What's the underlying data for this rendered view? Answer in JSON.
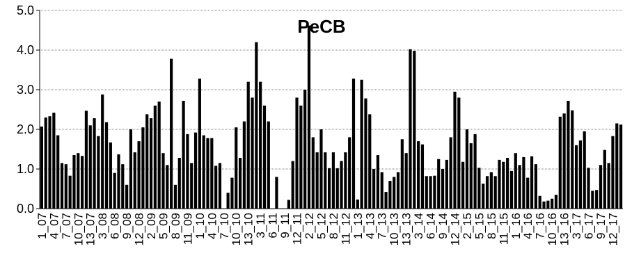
{
  "chart_data": {
    "type": "bar",
    "title": "PeCB",
    "xlabel": "",
    "ylabel": "",
    "ylim": [
      0,
      5
    ],
    "yticks": [
      "0.0",
      "1.0",
      "2.0",
      "3.0",
      "4.0",
      "5.0"
    ],
    "grid": true,
    "bar_color": "#000000",
    "x_tick_labels": [
      "1_07",
      "4_07",
      "7_07",
      "10_07",
      "13_07",
      "3_08",
      "6_08",
      "9_08",
      "12_08",
      "2_09",
      "5_09",
      "8_09",
      "11_09",
      "1_10",
      "4_10",
      "7_10",
      "10_10",
      "13_10",
      "3_11",
      "6_11",
      "9_11",
      "12_11",
      "2_12",
      "5_12",
      "8_12",
      "11_12",
      "1_13",
      "4_13",
      "7_13",
      "10_13",
      "13_13",
      "3_14",
      "6_14",
      "9_14",
      "12_14",
      "2_15",
      "5_15",
      "8_15",
      "11_15",
      "1_16",
      "4_16",
      "7_16",
      "10_16",
      "13_16",
      "3_17",
      "6_17",
      "9_17",
      "12_17"
    ],
    "values": [
      2.07,
      2.3,
      2.33,
      2.42,
      1.85,
      1.15,
      1.12,
      0.83,
      1.35,
      1.4,
      1.33,
      2.47,
      2.1,
      2.28,
      1.83,
      2.88,
      2.18,
      1.67,
      0.9,
      1.37,
      1.12,
      0.6,
      2.0,
      1.42,
      1.7,
      2.05,
      2.38,
      2.28,
      2.6,
      2.7,
      1.4,
      1.1,
      3.78,
      0.6,
      1.28,
      2.72,
      1.88,
      1.15,
      1.92,
      3.28,
      1.85,
      1.78,
      1.78,
      1.08,
      1.15,
      0,
      0.4,
      0.78,
      2.05,
      1.28,
      2.2,
      3.2,
      2.8,
      4.2,
      3.2,
      2.6,
      2.2,
      0,
      0.8,
      0,
      0,
      0.22,
      1.2,
      2.8,
      2.6,
      3.0,
      4.62,
      1.8,
      1.42,
      2.0,
      1.42,
      1.02,
      1.42,
      1.02,
      1.2,
      1.42,
      1.8,
      3.28,
      0.23,
      3.25,
      2.78,
      2.38,
      1.0,
      1.35,
      0.92,
      0.42,
      0.7,
      0.8,
      0.92,
      1.75,
      1.4,
      4.02,
      3.98,
      1.7,
      1.62,
      0.82,
      0.82,
      0.83,
      1.25,
      1.0,
      1.23,
      1.8,
      2.95,
      2.8,
      1.18,
      2.0,
      1.65,
      1.88,
      1.03,
      0.63,
      0.82,
      0.92,
      0.82,
      1.23,
      1.18,
      1.28,
      0.95,
      1.4,
      1.1,
      1.3,
      0.78,
      1.32,
      1.12,
      0.32,
      0.18,
      0.2,
      0.25,
      0.35,
      2.32,
      2.4,
      2.72,
      2.48,
      1.6,
      1.72,
      1.95,
      1.03,
      0.45,
      0.47,
      1.1,
      1.48,
      1.15,
      1.83,
      2.15,
      2.12
    ]
  }
}
